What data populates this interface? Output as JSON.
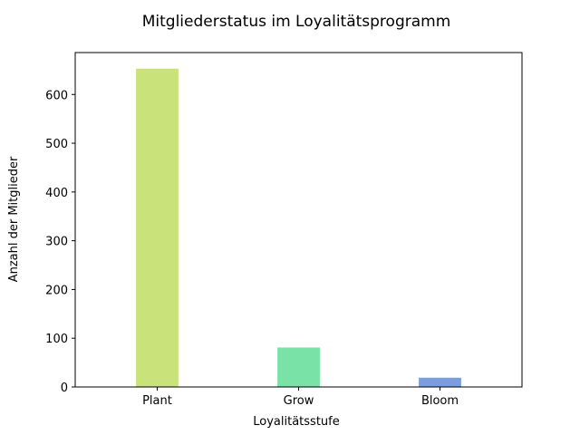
{
  "chart_data": {
    "type": "bar",
    "title": "Mitgliederstatus im Loyalitätsprogramm",
    "xlabel": "Loyalitätsstufe",
    "ylabel": "Anzahl der Mitglieder",
    "categories": [
      "Plant",
      "Grow",
      "Bloom"
    ],
    "values": [
      653,
      81,
      19
    ],
    "colors": [
      "#c9e27a",
      "#79e3a7",
      "#7b9de0"
    ],
    "ylim": [
      0,
      686
    ],
    "yticks": [
      0,
      100,
      200,
      300,
      400,
      500,
      600
    ],
    "grid": false,
    "legend": "none"
  }
}
